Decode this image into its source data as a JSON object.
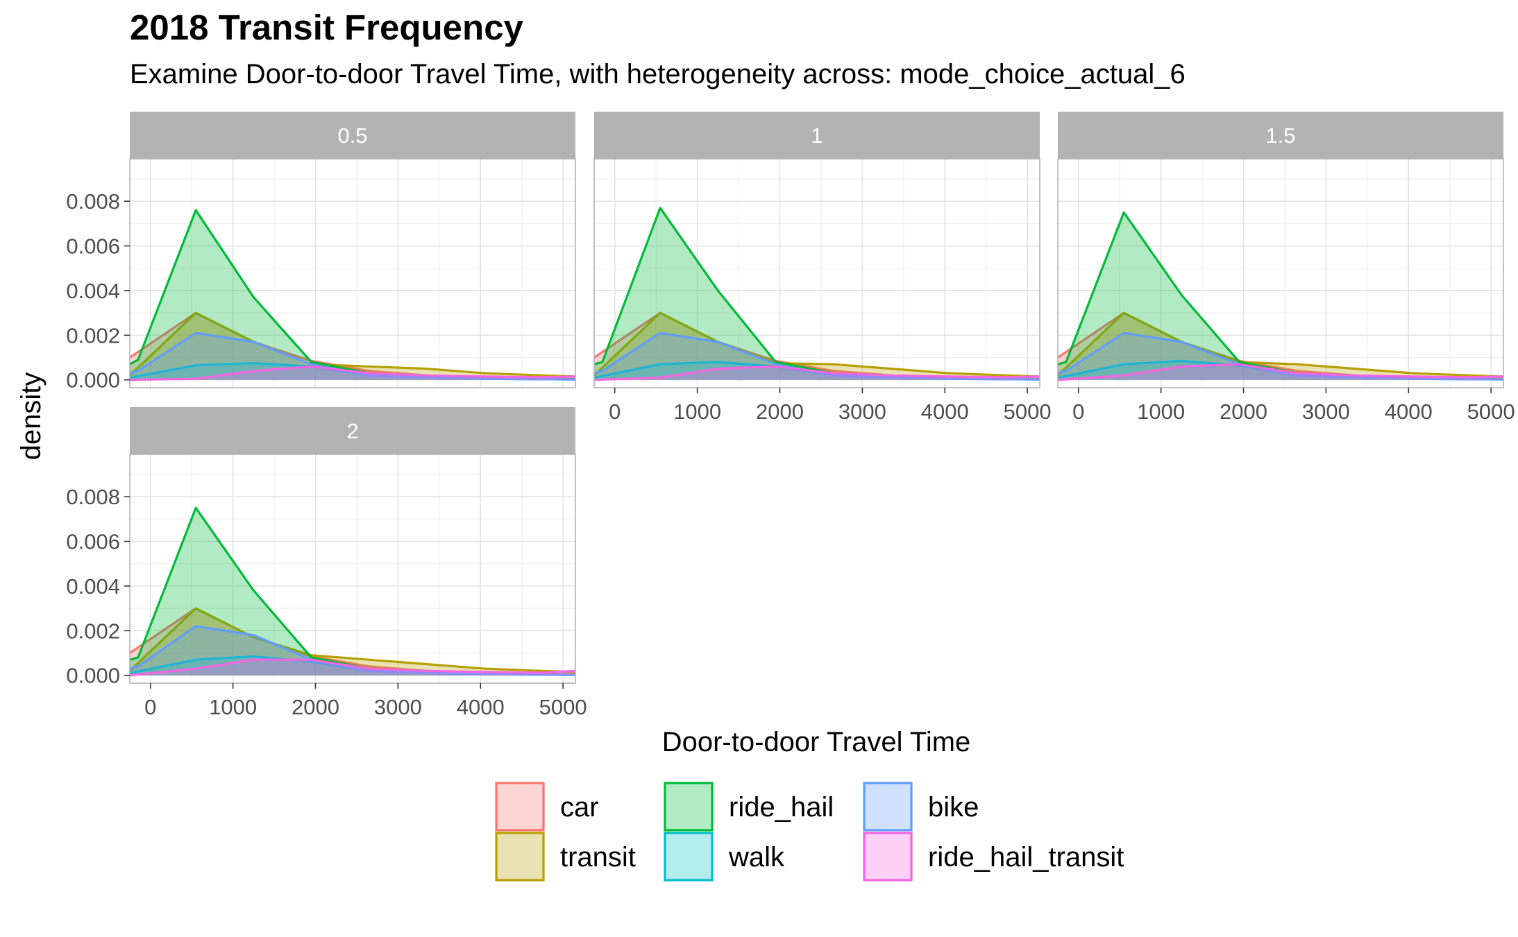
{
  "chart_data": {
    "type": "area",
    "title": "2018 Transit Frequency",
    "subtitle": "Examine Door-to-door Travel Time, with heterogeneity across: mode_choice_actual_6",
    "xlabel": "Door-to-door Travel Time",
    "ylabel": "density",
    "xlim": [
      -250,
      5150
    ],
    "ylim": [
      -0.00035,
      0.0099
    ],
    "x_ticks": [
      0,
      1000,
      2000,
      3000,
      4000,
      5000
    ],
    "x_tick_labels": [
      "0",
      "1000",
      "2000",
      "3000",
      "4000",
      "5000"
    ],
    "y_ticks": [
      0,
      0.002,
      0.004,
      0.006,
      0.008
    ],
    "y_tick_labels": [
      "0.000",
      "0.002",
      "0.004",
      "0.006",
      "0.008"
    ],
    "grid": true,
    "legend_position": "bottom",
    "facet_variable": "mode_choice_actual_6",
    "facets": [
      {
        "label": "0.5",
        "series": [
          {
            "name": "car",
            "x": [
              -250,
              550,
              1250,
              1950,
              2650,
              3350,
              4050,
              4750,
              5150
            ],
            "y": [
              0.001,
              0.003,
              0.0017,
              0.00085,
              0.0004,
              0.0002,
              0.0001,
              5e-05,
              4e-05
            ]
          },
          {
            "name": "transit",
            "x": [
              -250,
              550,
              1250,
              1950,
              2650,
              3350,
              4050,
              4750,
              5150
            ],
            "y": [
              0.0002,
              0.003,
              0.0017,
              0.0007,
              0.0006,
              0.0005,
              0.0003,
              0.0002,
              0.00015
            ]
          },
          {
            "name": "ride_hail",
            "x": [
              -250,
              -150,
              550,
              1250,
              1950,
              2650,
              3350,
              4050,
              4750,
              5150
            ],
            "y": [
              0.0007,
              0.0009,
              0.0076,
              0.0037,
              0.0008,
              0.0003,
              0.0002,
              0.0001,
              5e-05,
              3e-05
            ]
          },
          {
            "name": "walk",
            "x": [
              -250,
              550,
              1250,
              1950,
              2650,
              3350,
              4050,
              4750,
              5150
            ],
            "y": [
              0.0001,
              0.00065,
              0.00075,
              0.0006,
              0.0002,
              0.0001,
              5e-05,
              3e-05,
              2e-05
            ]
          },
          {
            "name": "bike",
            "x": [
              -250,
              -150,
              550,
              1250,
              1950,
              2650,
              3350,
              4050,
              4750,
              5150
            ],
            "y": [
              0.0003,
              0.0004,
              0.0021,
              0.0017,
              0.0007,
              0.0002,
              0.0001,
              5e-05,
              3e-05,
              2e-05
            ]
          },
          {
            "name": "ride_hail_transit",
            "x": [
              -250,
              550,
              1250,
              1950,
              2650,
              3350,
              4050,
              4750,
              5150
            ],
            "y": [
              0.0,
              5e-05,
              0.0004,
              0.0006,
              0.0003,
              0.0002,
              0.00015,
              0.00012,
              0.00015
            ]
          }
        ]
      },
      {
        "label": "1",
        "series": [
          {
            "name": "car",
            "x": [
              -250,
              550,
              1250,
              1950,
              2650,
              3350,
              4050,
              4750,
              5150
            ],
            "y": [
              0.001,
              0.003,
              0.0017,
              0.00085,
              0.0004,
              0.0002,
              0.0001,
              5e-05,
              4e-05
            ]
          },
          {
            "name": "transit",
            "x": [
              -250,
              550,
              1250,
              1950,
              2650,
              3350,
              4050,
              4750,
              5150
            ],
            "y": [
              0.0002,
              0.003,
              0.0017,
              0.00075,
              0.0007,
              0.0005,
              0.0003,
              0.0002,
              0.00015
            ]
          },
          {
            "name": "ride_hail",
            "x": [
              -250,
              -150,
              550,
              1250,
              1950,
              2650,
              3350,
              4050,
              4750,
              5150
            ],
            "y": [
              0.0007,
              0.0008,
              0.0077,
              0.004,
              0.0008,
              0.0003,
              0.0002,
              0.0001,
              5e-05,
              3e-05
            ]
          },
          {
            "name": "walk",
            "x": [
              -250,
              550,
              1250,
              1950,
              2650,
              3350,
              4050,
              4750,
              5150
            ],
            "y": [
              0.0001,
              0.0007,
              0.0008,
              0.0006,
              0.0002,
              0.0001,
              5e-05,
              3e-05,
              2e-05
            ]
          },
          {
            "name": "bike",
            "x": [
              -250,
              -150,
              550,
              1250,
              1950,
              2650,
              3350,
              4050,
              4750,
              5150
            ],
            "y": [
              0.0003,
              0.0004,
              0.0021,
              0.0017,
              0.0007,
              0.0002,
              0.0001,
              5e-05,
              3e-05,
              2e-05
            ]
          },
          {
            "name": "ride_hail_transit",
            "x": [
              -250,
              550,
              1250,
              1950,
              2650,
              3350,
              4050,
              4750,
              5150
            ],
            "y": [
              0.0,
              0.0001,
              0.0005,
              0.0006,
              0.0003,
              0.0002,
              0.00015,
              0.00012,
              0.00015
            ]
          }
        ]
      },
      {
        "label": "1.5",
        "series": [
          {
            "name": "car",
            "x": [
              -250,
              550,
              1250,
              1950,
              2650,
              3350,
              4050,
              4750,
              5150
            ],
            "y": [
              0.001,
              0.003,
              0.0017,
              0.00085,
              0.0004,
              0.0002,
              0.0001,
              5e-05,
              4e-05
            ]
          },
          {
            "name": "transit",
            "x": [
              -250,
              550,
              1250,
              1950,
              2650,
              3350,
              4050,
              4750,
              5150
            ],
            "y": [
              0.0002,
              0.003,
              0.0017,
              0.0008,
              0.0007,
              0.0005,
              0.0003,
              0.0002,
              0.00015
            ]
          },
          {
            "name": "ride_hail",
            "x": [
              -250,
              -150,
              550,
              1250,
              1950,
              2650,
              3350,
              4050,
              4750,
              5150
            ],
            "y": [
              0.0007,
              0.0008,
              0.0075,
              0.0038,
              0.0008,
              0.0003,
              0.0002,
              0.0001,
              5e-05,
              3e-05
            ]
          },
          {
            "name": "walk",
            "x": [
              -250,
              550,
              1250,
              1950,
              2650,
              3350,
              4050,
              4750,
              5150
            ],
            "y": [
              0.0001,
              0.0007,
              0.00085,
              0.00065,
              0.0002,
              0.0001,
              5e-05,
              3e-05,
              2e-05
            ]
          },
          {
            "name": "bike",
            "x": [
              -250,
              -150,
              550,
              1250,
              1950,
              2650,
              3350,
              4050,
              4750,
              5150
            ],
            "y": [
              0.0003,
              0.0004,
              0.0021,
              0.0017,
              0.0007,
              0.0002,
              0.0001,
              5e-05,
              3e-05,
              2e-05
            ]
          },
          {
            "name": "ride_hail_transit",
            "x": [
              -250,
              550,
              1250,
              1950,
              2650,
              3350,
              4050,
              4750,
              5150
            ],
            "y": [
              0.0,
              0.0002,
              0.0006,
              0.0007,
              0.0003,
              0.0002,
              0.00015,
              0.00012,
              0.00015
            ]
          }
        ]
      },
      {
        "label": "2",
        "series": [
          {
            "name": "car",
            "x": [
              -250,
              550,
              1250,
              1950,
              2650,
              3350,
              4050,
              4750,
              5150
            ],
            "y": [
              0.001,
              0.003,
              0.0017,
              0.00085,
              0.0004,
              0.0002,
              0.0001,
              5e-05,
              4e-05
            ]
          },
          {
            "name": "transit",
            "x": [
              -250,
              550,
              1250,
              1950,
              2650,
              3350,
              4050,
              4750,
              5150
            ],
            "y": [
              0.0002,
              0.003,
              0.0017,
              0.0009,
              0.0007,
              0.0005,
              0.0003,
              0.0002,
              0.00015
            ]
          },
          {
            "name": "ride_hail",
            "x": [
              -250,
              -150,
              550,
              1250,
              1950,
              2650,
              3350,
              4050,
              4750,
              5150
            ],
            "y": [
              0.0007,
              0.0008,
              0.0075,
              0.0038,
              0.0008,
              0.0003,
              0.0002,
              0.0001,
              5e-05,
              3e-05
            ]
          },
          {
            "name": "walk",
            "x": [
              -250,
              550,
              1250,
              1950,
              2650,
              3350,
              4050,
              4750,
              5150
            ],
            "y": [
              0.0001,
              0.0007,
              0.00085,
              0.0006,
              0.0002,
              0.0001,
              5e-05,
              3e-05,
              2e-05
            ]
          },
          {
            "name": "bike",
            "x": [
              -250,
              -150,
              550,
              1250,
              1950,
              2650,
              3350,
              4050,
              4750,
              5150
            ],
            "y": [
              0.0003,
              0.0004,
              0.0022,
              0.0018,
              0.0007,
              0.0002,
              0.0001,
              5e-05,
              3e-05,
              2e-05
            ]
          },
          {
            "name": "ride_hail_transit",
            "x": [
              -250,
              550,
              1250,
              1950,
              2650,
              3350,
              4050,
              4750,
              5150
            ],
            "y": [
              0.0,
              0.0003,
              0.0007,
              0.0007,
              0.0003,
              0.0002,
              0.00015,
              0.00012,
              0.0002
            ]
          }
        ]
      }
    ],
    "legend": [
      {
        "name": "car",
        "color": "#F8766D"
      },
      {
        "name": "ride_hail",
        "color": "#00BA38"
      },
      {
        "name": "bike",
        "color": "#619CFF"
      },
      {
        "name": "transit",
        "color": "#B79F00"
      },
      {
        "name": "walk",
        "color": "#00BFC4"
      },
      {
        "name": "ride_hail_transit",
        "color": "#F564E3"
      }
    ],
    "fill_opacity": 0.3
  }
}
